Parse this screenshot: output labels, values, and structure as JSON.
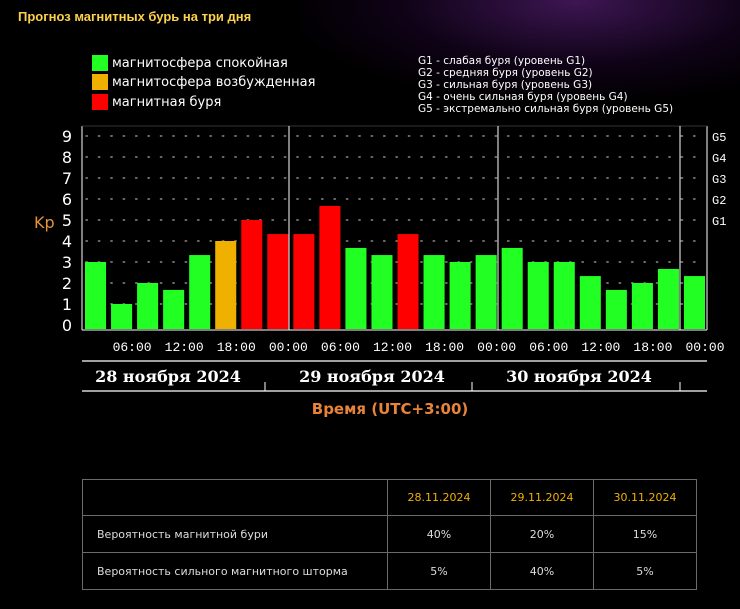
{
  "title": "Прогноз магнитных бурь на три дня",
  "legend": [
    {
      "label": "магнитосфера спокойная",
      "color": "#22ff22"
    },
    {
      "label": "магнитосфера возбужденная",
      "color": "#f0b000"
    },
    {
      "label": "магнитная буря",
      "color": "#ff0000"
    }
  ],
  "g_legend": [
    "G1 - слабая буря (уровень G1)",
    "G2 - средняя буря (уровень G2)",
    "G3 - сильная буря (уровень G3)",
    "G4 - очень сильная буря (уровень G4)",
    "G5 - экстремально сильная буря (уровень G5)"
  ],
  "chart_data": {
    "type": "bar",
    "title": "Прогноз магнитных бурь на три дня",
    "ylabel": "Kp",
    "xlabel": "Время (UTC+3:00)",
    "ylim": [
      0,
      9
    ],
    "yticks": [
      "0",
      "1",
      "2",
      "3",
      "4",
      "5",
      "6",
      "7",
      "8",
      "9"
    ],
    "g_ticks": [
      {
        "label": "G1",
        "value": 5
      },
      {
        "label": "G2",
        "value": 6
      },
      {
        "label": "G3",
        "value": 7
      },
      {
        "label": "G4",
        "value": 8
      },
      {
        "label": "G5",
        "value": 9
      }
    ],
    "xticks": [
      "06:00",
      "12:00",
      "18:00",
      "00:00",
      "06:00",
      "12:00",
      "18:00",
      "00:00",
      "06:00",
      "12:00",
      "18:00",
      "00:00"
    ],
    "days": [
      "28 ноября 2024",
      "29 ноября 2024",
      "30 ноября 2024"
    ],
    "values": [
      3.0,
      1.0,
      2.0,
      1.67,
      3.33,
      4.0,
      5.0,
      4.33,
      4.33,
      5.67,
      3.67,
      3.33,
      4.33,
      3.33,
      3.0,
      3.33,
      3.67,
      3.0,
      3.0,
      2.33,
      1.67,
      2.0,
      2.67,
      2.33
    ],
    "colors": {
      "quiet": "#22ff22",
      "active": "#f0b000",
      "storm": "#ff0000"
    },
    "bar_states": [
      "quiet",
      "quiet",
      "quiet",
      "quiet",
      "quiet",
      "active",
      "storm",
      "storm",
      "storm",
      "storm",
      "quiet",
      "quiet",
      "storm",
      "quiet",
      "quiet",
      "quiet",
      "quiet",
      "quiet",
      "quiet",
      "quiet",
      "quiet",
      "quiet",
      "quiet",
      "quiet"
    ],
    "ylabel_text": "Kp"
  },
  "time_label": "Время (UTC+3:00)",
  "table": {
    "headers": [
      "",
      "28.11.2024",
      "29.11.2024",
      "30.11.2024"
    ],
    "rows": [
      {
        "label": "Вероятность магнитной бури",
        "values": [
          "40%",
          "20%",
          "15%"
        ]
      },
      {
        "label": "Вероятность сильного магнитного шторма",
        "values": [
          "5%",
          "40%",
          "5%"
        ]
      }
    ]
  }
}
